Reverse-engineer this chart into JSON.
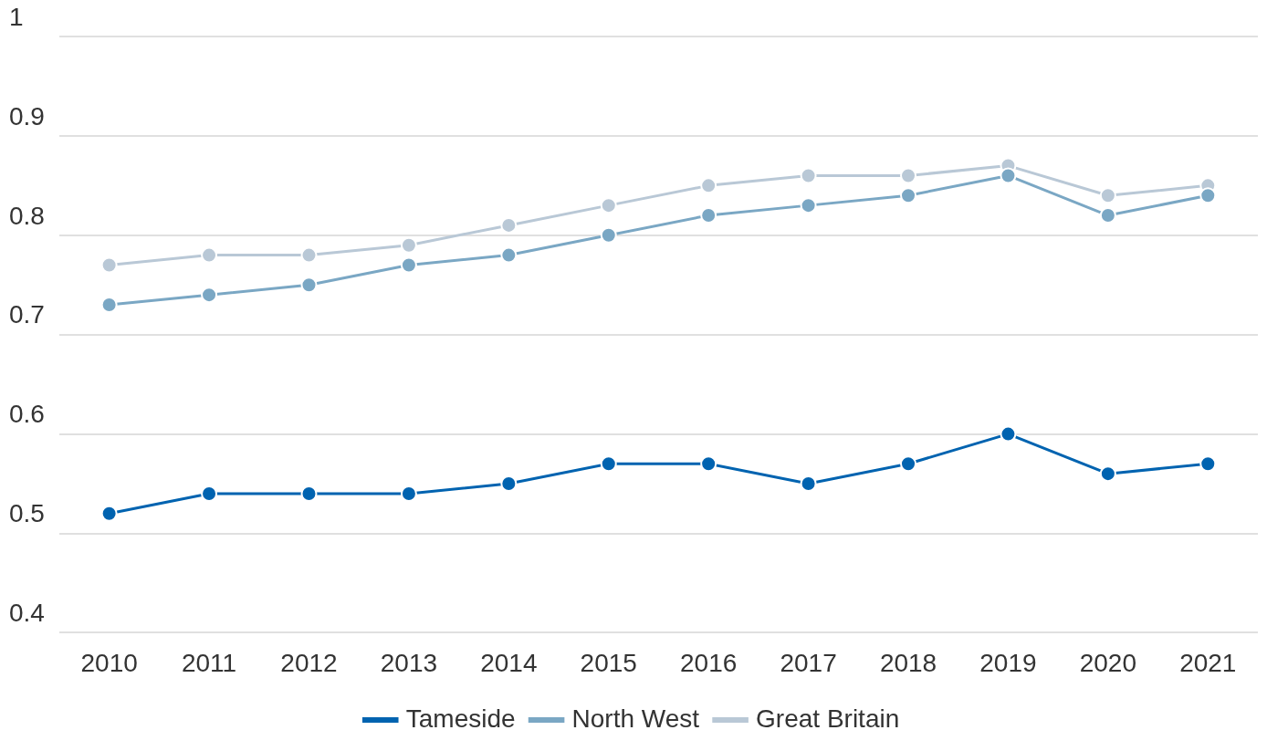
{
  "chart_data": {
    "type": "line",
    "categories": [
      "2010",
      "2011",
      "2012",
      "2013",
      "2014",
      "2015",
      "2016",
      "2017",
      "2018",
      "2019",
      "2020",
      "2021"
    ],
    "series": [
      {
        "name": "Tameside",
        "color": "#0063b0",
        "values": [
          0.52,
          0.54,
          0.54,
          0.54,
          0.55,
          0.57,
          0.57,
          0.55,
          0.57,
          0.6,
          0.56,
          0.57
        ]
      },
      {
        "name": "North West",
        "color": "#7aa7c4",
        "values": [
          0.73,
          0.74,
          0.75,
          0.77,
          0.78,
          0.8,
          0.82,
          0.83,
          0.84,
          0.86,
          0.82,
          0.84
        ]
      },
      {
        "name": "Great Britain",
        "color": "#b9c8d6",
        "values": [
          0.77,
          0.78,
          0.78,
          0.79,
          0.81,
          0.83,
          0.85,
          0.86,
          0.86,
          0.87,
          0.84,
          0.85
        ]
      }
    ],
    "ylim": [
      0.4,
      1
    ],
    "yticks": [
      0.4,
      0.5,
      0.6,
      0.7,
      0.8,
      0.9,
      1
    ],
    "grid": "y",
    "legend": "bottom",
    "marker": "circle",
    "line_style": "solid"
  }
}
